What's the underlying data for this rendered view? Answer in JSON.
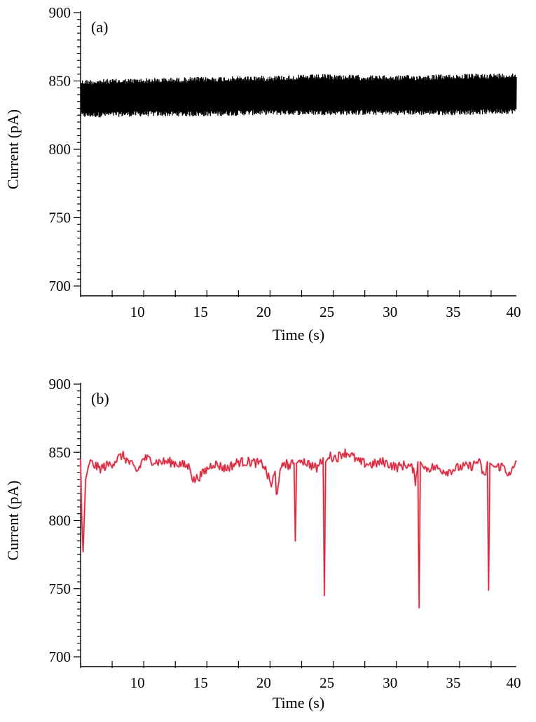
{
  "chart_data": [
    {
      "type": "line",
      "panel_label": "(a)",
      "xlabel": "Time (s)",
      "ylabel": "Current (pA)",
      "xlim": [
        5.5,
        40
      ],
      "ylim": [
        700,
        900
      ],
      "xticks": [
        10,
        15,
        20,
        25,
        30,
        35,
        40
      ],
      "yticks": [
        700,
        750,
        800,
        850,
        900
      ],
      "grid": false,
      "line_color": "#000000",
      "series": [
        {
          "values_description_free": true,
          "x": [
            5.5,
            10,
            15,
            20,
            25,
            30,
            35,
            40
          ],
          "upper_envelope": [
            851,
            852,
            853,
            854,
            855,
            854,
            855,
            856
          ],
          "lower_envelope": [
            823,
            824,
            824,
            825,
            825,
            825,
            825,
            826
          ],
          "mean": [
            837,
            838,
            838,
            839,
            840,
            839,
            840,
            841
          ]
        }
      ]
    },
    {
      "type": "line",
      "panel_label": "(b)",
      "xlabel": "Time (s)",
      "ylabel": "Current (pA)",
      "xlim": [
        5.5,
        40
      ],
      "ylim": [
        700,
        900
      ],
      "xticks": [
        10,
        15,
        20,
        25,
        30,
        35,
        40
      ],
      "yticks": [
        700,
        750,
        800,
        850,
        900
      ],
      "grid": false,
      "line_color": "#d7263d",
      "series": [
        {
          "x": [
            5.5,
            5.6,
            5.7,
            5.9,
            6.2,
            7.0,
            8.0,
            8.8,
            10.0,
            10.5,
            11.5,
            12.5,
            13.5,
            14.2,
            14.4,
            15.0,
            16.0,
            17.0,
            18.0,
            19.0,
            20.0,
            20.3,
            20.6,
            20.9,
            21.0,
            21.2,
            21.6,
            22.0,
            22.4,
            22.5,
            22.6,
            22.9,
            23.5,
            24.2,
            24.7,
            24.8,
            24.9,
            25.2,
            25.8,
            26.3,
            26.8,
            27.5,
            28.5,
            29.5,
            30.5,
            31.3,
            31.8,
            32.0,
            32.2,
            32.3,
            32.4,
            32.7,
            33.5,
            34.5,
            35.5,
            36.5,
            37.0,
            37.5,
            37.7,
            37.8,
            37.9,
            38.3,
            39.0,
            39.5,
            40.0
          ],
          "y": [
            845,
            800,
            777,
            830,
            843,
            838,
            842,
            848,
            836,
            846,
            843,
            843,
            841,
            839,
            829,
            833,
            842,
            838,
            843,
            843,
            841,
            833,
            826,
            835,
            818,
            831,
            843,
            840,
            842,
            785,
            842,
            845,
            842,
            838,
            846,
            745,
            843,
            847,
            846,
            850,
            849,
            843,
            841,
            843,
            839,
            841,
            838,
            829,
            843,
            736,
            843,
            838,
            839,
            836,
            839,
            840,
            844,
            831,
            843,
            749,
            842,
            839,
            840,
            832,
            844
          ]
        }
      ]
    }
  ]
}
